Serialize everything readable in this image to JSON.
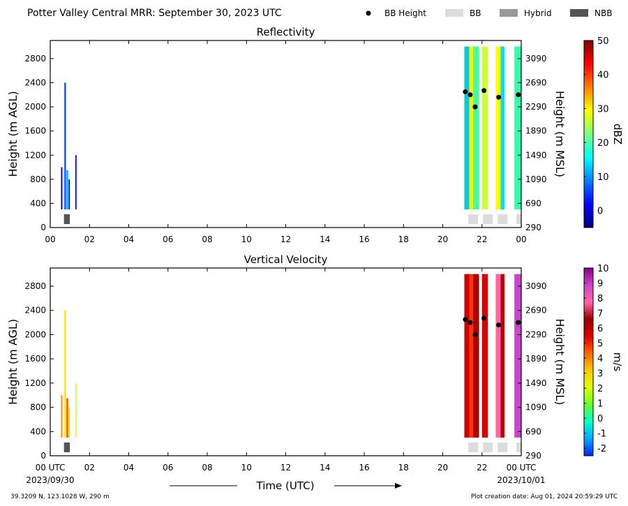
{
  "header": {
    "title": "Potter Valley Central MRR:  September 30, 2023 UTC",
    "legend": [
      {
        "label": "BB Height",
        "kind": "dot",
        "color": "#000000"
      },
      {
        "label": "BB",
        "kind": "swatch",
        "color": "#dcdcdc"
      },
      {
        "label": "Hybrid",
        "kind": "swatch",
        "color": "#999999"
      },
      {
        "label": "NBB",
        "kind": "swatch",
        "color": "#555555"
      }
    ]
  },
  "footer": {
    "location": "39.3209 N, 123.1028 W, 290 m",
    "creation": "Plot creation date: Aug 01, 2024 20:59:29 UTC",
    "xlabel": "Time (UTC)",
    "start_date": "2023/09/30",
    "end_date": "2023/10/01"
  },
  "chart_data": [
    {
      "type": "heatmap",
      "title": "Reflectivity",
      "xlabel": "",
      "ylabel": "Height (m AGL)",
      "ylabel_right": "Height (m MSL)",
      "x_unit": "hours UTC",
      "xlim": [
        0,
        24
      ],
      "ylim": [
        0,
        3100
      ],
      "xticks": [
        "00",
        "02",
        "04",
        "06",
        "08",
        "10",
        "12",
        "14",
        "16",
        "18",
        "20",
        "22",
        "00"
      ],
      "yticks": [
        0,
        400,
        800,
        1200,
        1600,
        2000,
        2400,
        2800
      ],
      "yticks_right": [
        "290",
        "690",
        "1090",
        "1490",
        "1890",
        "2290",
        "2690",
        "3090"
      ],
      "colorbar": {
        "label": "dBZ",
        "min": -5,
        "max": 50,
        "ticks": [
          "50",
          "40",
          "30",
          "20",
          "10",
          "0"
        ],
        "colors": [
          "#00007f",
          "#0000ff",
          "#007fff",
          "#00ffff",
          "#7fff7f",
          "#ffff00",
          "#ff7f00",
          "#ff0000",
          "#7f0000"
        ]
      },
      "bb_height": [
        {
          "time": 21.15,
          "height": 2250
        },
        {
          "time": 21.4,
          "height": 2200
        },
        {
          "time": 21.65,
          "height": 2000
        },
        {
          "time": 22.1,
          "height": 2270
        },
        {
          "time": 22.85,
          "height": 2160
        },
        {
          "time": 23.85,
          "height": 2200
        }
      ],
      "bb_flags": [
        {
          "start": 0.7,
          "end": 1.0,
          "kind": "NBB"
        },
        {
          "start": 21.3,
          "end": 21.8,
          "kind": "BB"
        },
        {
          "start": 22.05,
          "end": 22.55,
          "kind": "BB"
        },
        {
          "start": 22.8,
          "end": 23.3,
          "kind": "BB"
        },
        {
          "start": 23.75,
          "end": 24.0,
          "kind": "BB"
        }
      ],
      "echo_columns": [
        {
          "start": 0.55,
          "end": 0.62,
          "top": 1000,
          "color": "#0000cc"
        },
        {
          "start": 0.72,
          "end": 0.8,
          "top": 2400,
          "color": "#0044ff"
        },
        {
          "start": 0.82,
          "end": 0.92,
          "top": 950,
          "color": "#00bbff"
        },
        {
          "start": 0.94,
          "end": 1.0,
          "top": 800,
          "color": "#0000aa"
        },
        {
          "start": 1.28,
          "end": 1.34,
          "top": 1200,
          "color": "#0000cc"
        },
        {
          "start": 21.1,
          "end": 21.35,
          "top": 3000,
          "color": "#00ccdd"
        },
        {
          "start": 21.35,
          "end": 21.55,
          "top": 3000,
          "color": "#ffee00"
        },
        {
          "start": 21.55,
          "end": 21.85,
          "top": 3000,
          "color": "#44ff99"
        },
        {
          "start": 22.0,
          "end": 22.3,
          "top": 3000,
          "color": "#ccff33"
        },
        {
          "start": 22.7,
          "end": 22.95,
          "top": 3000,
          "color": "#ffff00"
        },
        {
          "start": 22.95,
          "end": 23.15,
          "top": 3000,
          "color": "#00ddff"
        },
        {
          "start": 23.65,
          "end": 24.0,
          "top": 3000,
          "color": "#33ffaa"
        }
      ]
    },
    {
      "type": "heatmap",
      "title": "Vertical Velocity",
      "xlabel": "Time (UTC)",
      "ylabel": "Height (m AGL)",
      "ylabel_right": "Height (m MSL)",
      "x_unit": "hours UTC",
      "xlim": [
        0,
        24
      ],
      "ylim": [
        0,
        3100
      ],
      "xticks": [
        "00 UTC",
        "02",
        "04",
        "06",
        "08",
        "10",
        "12",
        "14",
        "16",
        "18",
        "20",
        "22",
        "00 UTC"
      ],
      "yticks": [
        0,
        400,
        800,
        1200,
        1600,
        2000,
        2400,
        2800
      ],
      "yticks_right": [
        "290",
        "690",
        "1090",
        "1490",
        "1890",
        "2290",
        "2690",
        "3090"
      ],
      "colorbar": {
        "label": "m/s",
        "min": -2.5,
        "max": 10,
        "ticks": [
          "10",
          "9",
          "8",
          "7",
          "6",
          "5",
          "4",
          "3",
          "2",
          "1",
          "0",
          "-1",
          "-2"
        ],
        "colors": [
          "#0022ff",
          "#00aaff",
          "#00ffcc",
          "#66ff33",
          "#ddff00",
          "#ffcc00",
          "#ff6600",
          "#dd0000",
          "#990000",
          "#ff66aa",
          "#cc44cc",
          "#880088"
        ]
      },
      "bb_height": [
        {
          "time": 21.15,
          "height": 2250
        },
        {
          "time": 21.4,
          "height": 2200
        },
        {
          "time": 21.65,
          "height": 2000
        },
        {
          "time": 22.1,
          "height": 2270
        },
        {
          "time": 22.85,
          "height": 2160
        },
        {
          "time": 23.85,
          "height": 2200
        }
      ],
      "bb_flags": [
        {
          "start": 0.7,
          "end": 1.0,
          "kind": "NBB"
        },
        {
          "start": 21.3,
          "end": 21.8,
          "kind": "BB"
        },
        {
          "start": 22.05,
          "end": 22.55,
          "kind": "BB"
        },
        {
          "start": 22.8,
          "end": 23.3,
          "kind": "BB"
        },
        {
          "start": 23.75,
          "end": 24.0,
          "kind": "BB"
        }
      ],
      "echo_columns": [
        {
          "start": 0.55,
          "end": 0.62,
          "top": 1000,
          "color": "#ff8800"
        },
        {
          "start": 0.72,
          "end": 0.8,
          "top": 2400,
          "color": "#ffdd00"
        },
        {
          "start": 0.82,
          "end": 0.92,
          "top": 950,
          "color": "#ff6600"
        },
        {
          "start": 0.94,
          "end": 1.0,
          "top": 800,
          "color": "#ffcc00"
        },
        {
          "start": 1.28,
          "end": 1.34,
          "top": 1200,
          "color": "#ccff33"
        },
        {
          "start": 21.1,
          "end": 21.35,
          "top": 3000,
          "color": "#cc0000"
        },
        {
          "start": 21.35,
          "end": 21.55,
          "top": 3000,
          "color": "#ff3300"
        },
        {
          "start": 21.55,
          "end": 21.85,
          "top": 3000,
          "color": "#aa0000"
        },
        {
          "start": 22.0,
          "end": 22.3,
          "top": 3000,
          "color": "#dd0000"
        },
        {
          "start": 22.7,
          "end": 22.95,
          "top": 3000,
          "color": "#ff66aa"
        },
        {
          "start": 22.95,
          "end": 23.15,
          "top": 3000,
          "color": "#bb0000"
        },
        {
          "start": 23.65,
          "end": 24.0,
          "top": 3000,
          "color": "#cc44cc"
        }
      ]
    }
  ]
}
